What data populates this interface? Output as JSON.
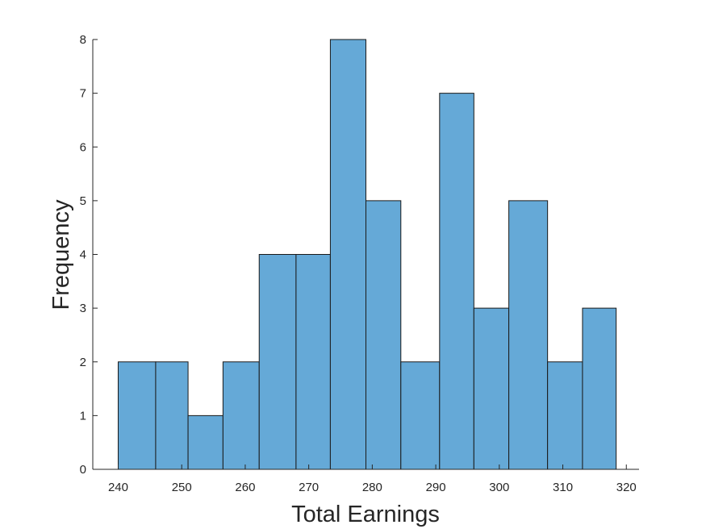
{
  "chart_data": {
    "type": "bar",
    "subtype": "histogram",
    "title": "",
    "xlabel": "Total Earnings",
    "ylabel": "Frequency",
    "xlim": [
      236,
      322
    ],
    "ylim": [
      0,
      8
    ],
    "xticks": [
      240,
      250,
      260,
      270,
      280,
      290,
      300,
      310,
      320
    ],
    "yticks": [
      0,
      1,
      2,
      3,
      4,
      5,
      6,
      7,
      8
    ],
    "bin_edges": [
      240.0,
      245.9,
      251.0,
      256.5,
      262.2,
      268.0,
      273.4,
      279.0,
      284.5,
      290.6,
      296.0,
      301.5,
      307.6,
      313.1,
      318.4
    ],
    "values": [
      2,
      2,
      1,
      2,
      4,
      4,
      8,
      5,
      2,
      7,
      3,
      5,
      2,
      3
    ],
    "grid": false,
    "bar_color": "#65a9d7",
    "edge_color": "#1a1a1a",
    "axis_color": "#262626"
  }
}
